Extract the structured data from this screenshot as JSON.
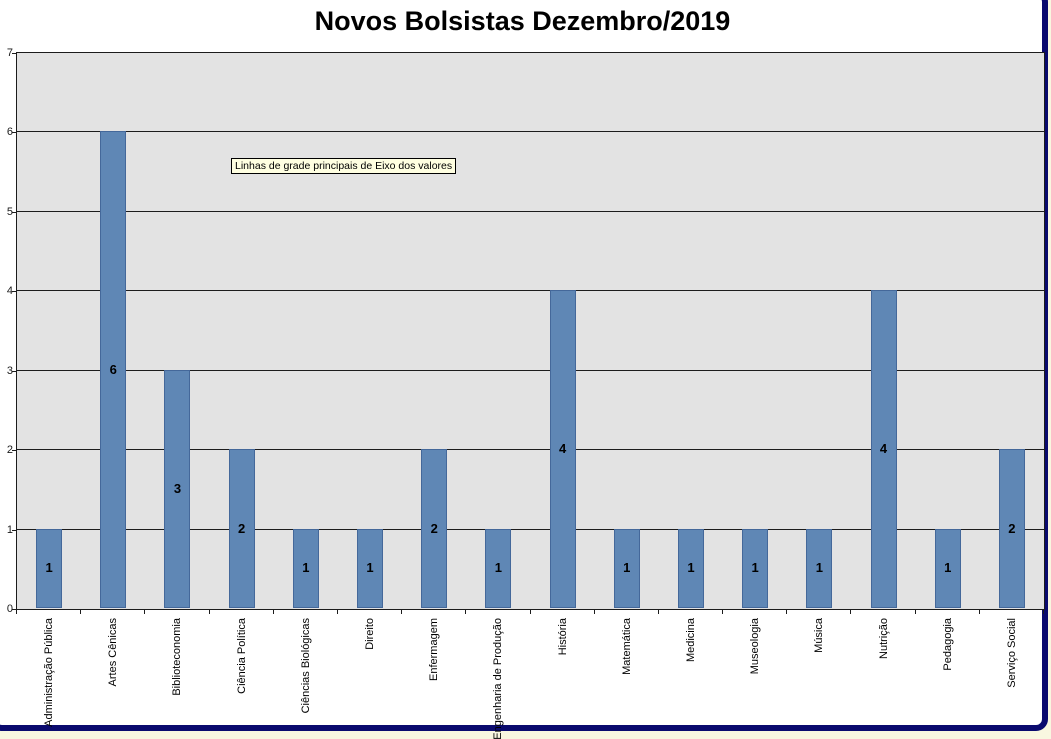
{
  "page": {
    "outside_bg": "#f9f7e0",
    "window_border_color": "#0a0a6e",
    "chart_bg": "#ffffff"
  },
  "title": "Novos Bolsistas Dezembro/2019",
  "tooltip": {
    "text": "Linhas de grade principais de Eixo dos valores",
    "bg": "#ffffe1",
    "border": "#000000"
  },
  "chart_data": {
    "type": "bar",
    "title": "Novos Bolsistas Dezembro/2019",
    "categories": [
      "Administração Pública",
      "Artes Cênicas",
      "Biblioteconomia",
      "Ciência Política",
      "Ciências Biológicas",
      "Direito",
      "Enfermagem",
      "Engenharia de Produção",
      "História",
      "Matemática",
      "Medicina",
      "Museologia",
      "Música",
      "Nutrição",
      "Pedagogia",
      "Serviço Social"
    ],
    "values": [
      1,
      6,
      3,
      2,
      1,
      1,
      2,
      1,
      4,
      1,
      1,
      1,
      1,
      4,
      1,
      2
    ],
    "xlabel": "",
    "ylabel": "",
    "ylim": [
      0,
      7
    ],
    "yticks": [
      "0",
      "1",
      "2",
      "3",
      "4",
      "5",
      "6",
      "7"
    ],
    "grid": true,
    "legend": false,
    "data_label_position": "center",
    "bar_color": "#5f87b5",
    "bar_border_color": "#44689a",
    "plot_bg": "#e3e3e3",
    "gridline_color": "#1c1c1c",
    "label_rotation_deg": -90
  }
}
